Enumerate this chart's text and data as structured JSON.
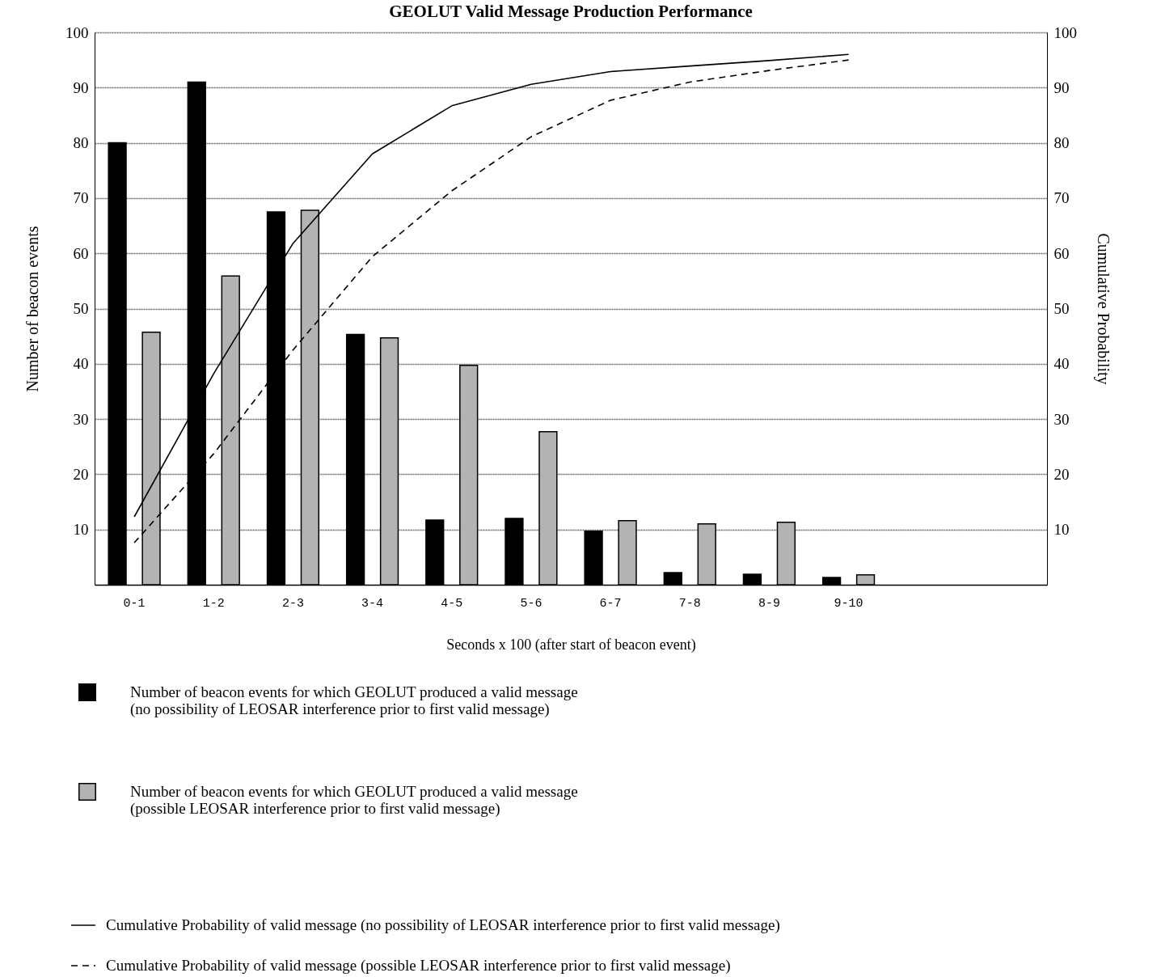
{
  "chart_data": {
    "type": "bar",
    "title": "GEOLUT Valid Message Production Performance",
    "xlabel": "Seconds x 100 (after start of beacon event)",
    "ylabel": "Number of beacon events",
    "y2label": "Cumulative Probability",
    "categories": [
      "0-1",
      "1-2",
      "2-3",
      "3-4",
      "4-5",
      "5-6",
      "6-7",
      "7-8",
      "8-9",
      "9-10",
      null,
      null
    ],
    "series": [
      {
        "name": "Number of beacon events for which GEOLUT produced a valid message (no possibility of LEOSAR interference prior to first valid message)",
        "color": "#000000",
        "values": [
          80,
          91,
          67.5,
          45.3,
          11.7,
          12,
          9.7,
          2.2,
          1.9,
          1.3,
          null,
          null
        ]
      },
      {
        "name": "Number of beacon events for which GEOLUT produced a valid message (possible LEOSAR interference prior to first valid message)",
        "color": "#b3b3b3",
        "values": [
          45.7,
          55.9,
          67.8,
          44.7,
          39.7,
          27.7,
          11.6,
          11,
          11.3,
          1.8,
          null,
          null
        ]
      },
      {
        "name": "Cumulative Probability of valid message (no possibility of LEOSAR interference prior to first valid message)",
        "type": "line",
        "axis": "y2",
        "color": "#000000",
        "line_style": "solid",
        "values": [
          12.3,
          38.2,
          61.8,
          78,
          86.7,
          90.6,
          92.9,
          93.9,
          94.9,
          96,
          null,
          null
        ]
      },
      {
        "name": "Cumulative Probability of valid message (possible LEOSAR interference prior to first valid message)",
        "type": "line",
        "axis": "y2",
        "color": "#000000",
        "line_style": "dashed",
        "values": [
          7.6,
          23.7,
          42.5,
          59.4,
          71.3,
          81.1,
          87.7,
          91,
          93.1,
          95,
          null,
          null
        ]
      }
    ],
    "ylim": [
      0,
      100
    ],
    "yticks": [
      10,
      20,
      30,
      40,
      50,
      60,
      70,
      80,
      90,
      100
    ],
    "y2lim": [
      0,
      100
    ],
    "y2ticks": [
      10,
      20,
      30,
      40,
      50,
      60,
      70,
      80,
      90,
      100
    ],
    "grid": "y",
    "legend": "bottom"
  }
}
